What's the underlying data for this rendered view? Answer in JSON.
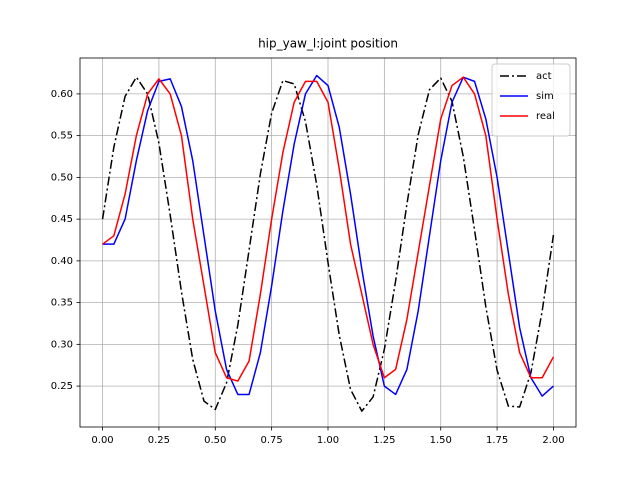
{
  "chart_data": {
    "type": "line",
    "title": "hip_yaw_l:joint position",
    "x": [
      0,
      0.05,
      0.1,
      0.15,
      0.2,
      0.25,
      0.3,
      0.35,
      0.4,
      0.45,
      0.5,
      0.55,
      0.6,
      0.65,
      0.7,
      0.75,
      0.8,
      0.85,
      0.9,
      0.95,
      1.0,
      1.05,
      1.1,
      1.15,
      1.2,
      1.25,
      1.3,
      1.35,
      1.4,
      1.45,
      1.5,
      1.55,
      1.6,
      1.65,
      1.7,
      1.75,
      1.8,
      1.85,
      1.9,
      1.95,
      2.0
    ],
    "series": [
      {
        "name": "act",
        "color": "#000000",
        "linestyle": "dashdot",
        "values": [
          0.45,
          0.536,
          0.597,
          0.62,
          0.6,
          0.541,
          0.455,
          0.363,
          0.282,
          0.232,
          0.222,
          0.254,
          0.323,
          0.413,
          0.504,
          0.577,
          0.616,
          0.612,
          0.567,
          0.491,
          0.398,
          0.311,
          0.246,
          0.22,
          0.237,
          0.294,
          0.376,
          0.468,
          0.551,
          0.605,
          0.619,
          0.591,
          0.525,
          0.437,
          0.345,
          0.269,
          0.226,
          0.225,
          0.266,
          0.34,
          0.431
        ]
      },
      {
        "name": "sim",
        "color": "#0000ff",
        "linestyle": "solid",
        "values": [
          0.42,
          0.42,
          0.45,
          0.52,
          0.58,
          0.615,
          0.618,
          0.585,
          0.52,
          0.43,
          0.34,
          0.27,
          0.24,
          0.24,
          0.29,
          0.37,
          0.46,
          0.54,
          0.6,
          0.622,
          0.61,
          0.56,
          0.48,
          0.39,
          0.31,
          0.25,
          0.24,
          0.27,
          0.34,
          0.43,
          0.52,
          0.59,
          0.62,
          0.615,
          0.57,
          0.5,
          0.41,
          0.32,
          0.26,
          0.238,
          0.25
        ]
      },
      {
        "name": "real",
        "color": "#ff0000",
        "linestyle": "solid",
        "values": [
          0.42,
          0.43,
          0.48,
          0.55,
          0.6,
          0.618,
          0.6,
          0.55,
          0.45,
          0.37,
          0.29,
          0.26,
          0.256,
          0.28,
          0.36,
          0.45,
          0.53,
          0.59,
          0.615,
          0.615,
          0.59,
          0.51,
          0.42,
          0.36,
          0.3,
          0.26,
          0.27,
          0.33,
          0.41,
          0.49,
          0.57,
          0.61,
          0.62,
          0.6,
          0.55,
          0.45,
          0.36,
          0.29,
          0.26,
          0.26,
          0.285
        ]
      }
    ],
    "xlim": [
      -0.1,
      2.1
    ],
    "ylim": [
      0.201,
      0.643
    ],
    "xticks": [
      {
        "value": 0,
        "label": "0.00"
      },
      0.25,
      {
        "value": 0.5,
        "label": "0.50"
      },
      0.75,
      {
        "value": 1,
        "label": "1.00"
      },
      1.25,
      {
        "value": 1.5,
        "label": "1.50"
      },
      1.75,
      {
        "value": 2,
        "label": "2.00"
      }
    ],
    "yticks": [
      0.25,
      {
        "value": 0.3,
        "label": "0.30"
      },
      0.35,
      {
        "value": 0.4,
        "label": "0.40"
      },
      0.45,
      {
        "value": 0.5,
        "label": "0.50"
      },
      0.55,
      {
        "value": 0.6,
        "label": "0.60"
      }
    ],
    "grid": true,
    "legend": "upper right"
  }
}
